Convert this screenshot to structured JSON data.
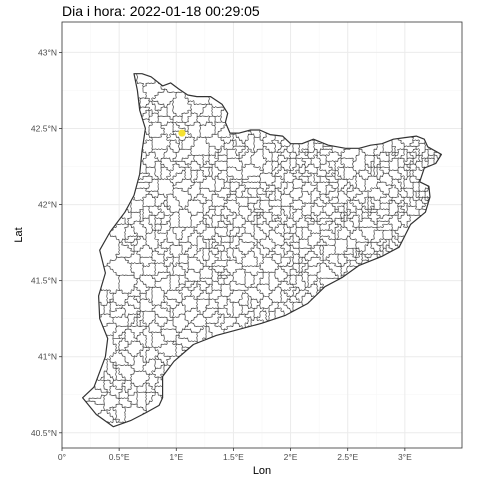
{
  "chart_data": {
    "type": "map",
    "title": "Dia i hora: 2022-01-18 00:29:05",
    "xlabel": "Lon",
    "ylabel": "Lat",
    "xlim": [
      0,
      3.5
    ],
    "ylim": [
      40.4,
      43.2
    ],
    "x_ticks": [
      {
        "value": 0,
        "label": "0°"
      },
      {
        "value": 0.5,
        "label": "0.5°E"
      },
      {
        "value": 1,
        "label": "1°E"
      },
      {
        "value": 1.5,
        "label": "1.5°E"
      },
      {
        "value": 2,
        "label": "2°E"
      },
      {
        "value": 2.5,
        "label": "2.5°E"
      },
      {
        "value": 3,
        "label": "3°E"
      }
    ],
    "y_ticks": [
      {
        "value": 40.5,
        "label": "40.5°N"
      },
      {
        "value": 41,
        "label": "41°N"
      },
      {
        "value": 41.5,
        "label": "41.5°N"
      },
      {
        "value": 42,
        "label": "42°N"
      },
      {
        "value": 42.5,
        "label": "42.5°N"
      },
      {
        "value": 43,
        "label": "43°N"
      }
    ],
    "points": [
      {
        "lon": 1.05,
        "lat": 42.47,
        "color": "#f5e132"
      }
    ],
    "outline": [
      [
        0.63,
        42.86
      ],
      [
        0.7,
        42.86
      ],
      [
        0.78,
        42.84
      ],
      [
        0.88,
        42.78
      ],
      [
        0.95,
        42.8
      ],
      [
        1.02,
        42.76
      ],
      [
        1.1,
        42.72
      ],
      [
        1.18,
        42.71
      ],
      [
        1.3,
        42.71
      ],
      [
        1.4,
        42.66
      ],
      [
        1.45,
        42.6
      ],
      [
        1.43,
        42.54
      ],
      [
        1.47,
        42.47
      ],
      [
        1.55,
        42.47
      ],
      [
        1.65,
        42.49
      ],
      [
        1.73,
        42.49
      ],
      [
        1.82,
        42.46
      ],
      [
        1.93,
        42.45
      ],
      [
        2.0,
        42.4
      ],
      [
        2.1,
        42.4
      ],
      [
        2.2,
        42.43
      ],
      [
        2.33,
        42.39
      ],
      [
        2.48,
        42.37
      ],
      [
        2.6,
        42.37
      ],
      [
        2.7,
        42.39
      ],
      [
        2.8,
        42.4
      ],
      [
        2.9,
        42.43
      ],
      [
        3.0,
        42.44
      ],
      [
        3.1,
        42.45
      ],
      [
        3.17,
        42.43
      ],
      [
        3.2,
        42.38
      ],
      [
        3.32,
        42.33
      ],
      [
        3.27,
        42.27
      ],
      [
        3.17,
        42.24
      ],
      [
        3.13,
        42.15
      ],
      [
        3.21,
        42.12
      ],
      [
        3.22,
        42.05
      ],
      [
        3.18,
        41.95
      ],
      [
        3.05,
        41.87
      ],
      [
        2.95,
        41.72
      ],
      [
        2.8,
        41.66
      ],
      [
        2.6,
        41.6
      ],
      [
        2.45,
        41.52
      ],
      [
        2.3,
        41.46
      ],
      [
        2.15,
        41.35
      ],
      [
        1.95,
        41.27
      ],
      [
        1.75,
        41.22
      ],
      [
        1.55,
        41.18
      ],
      [
        1.35,
        41.14
      ],
      [
        1.15,
        41.08
      ],
      [
        0.98,
        40.97
      ],
      [
        0.88,
        40.87
      ],
      [
        0.88,
        40.73
      ],
      [
        0.85,
        40.68
      ],
      [
        0.73,
        40.63
      ],
      [
        0.6,
        40.58
      ],
      [
        0.45,
        40.54
      ],
      [
        0.3,
        40.62
      ],
      [
        0.18,
        40.73
      ],
      [
        0.28,
        40.8
      ],
      [
        0.33,
        40.9
      ],
      [
        0.38,
        41.0
      ],
      [
        0.4,
        41.12
      ],
      [
        0.33,
        41.25
      ],
      [
        0.32,
        41.4
      ],
      [
        0.38,
        41.55
      ],
      [
        0.33,
        41.7
      ],
      [
        0.42,
        41.82
      ],
      [
        0.55,
        41.95
      ],
      [
        0.63,
        42.06
      ],
      [
        0.68,
        42.2
      ],
      [
        0.7,
        42.35
      ],
      [
        0.73,
        42.5
      ],
      [
        0.68,
        42.62
      ],
      [
        0.66,
        42.75
      ]
    ],
    "seed": 20220118
  }
}
